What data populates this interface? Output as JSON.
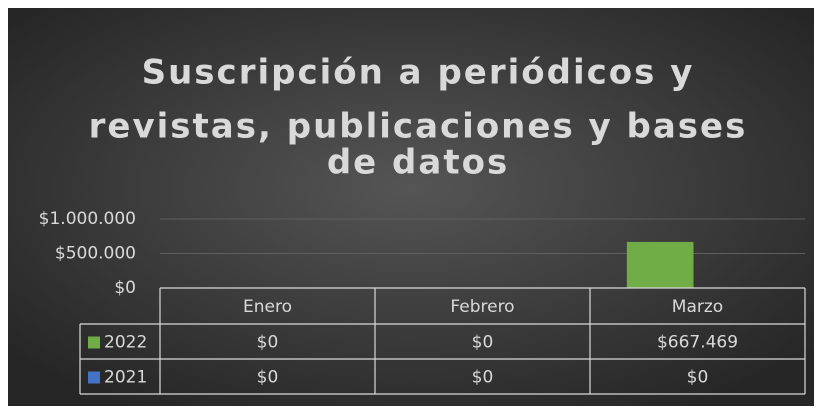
{
  "chart_data": {
    "type": "bar",
    "title_lines": [
      "Suscripción a periódicos y",
      "revistas, publicaciones y bases",
      "de datos"
    ],
    "categories": [
      "Enero",
      "Febrero",
      "Marzo"
    ],
    "series": [
      {
        "name": "2022",
        "color": "#70ad47",
        "values": [
          0,
          0,
          667469
        ],
        "value_labels": [
          "$0",
          "$0",
          "$667.469"
        ]
      },
      {
        "name": "2021",
        "color": "#4472c4",
        "values": [
          0,
          0,
          0
        ],
        "value_labels": [
          "$0",
          "$0",
          "$0"
        ]
      }
    ],
    "ylim": [
      0,
      1000000
    ],
    "yticks": [
      {
        "value": 0,
        "label": "$0"
      },
      {
        "value": 500000,
        "label": "$500.000"
      },
      {
        "value": 1000000,
        "label": "$1.000.000"
      }
    ],
    "grid": true,
    "data_table": true
  }
}
